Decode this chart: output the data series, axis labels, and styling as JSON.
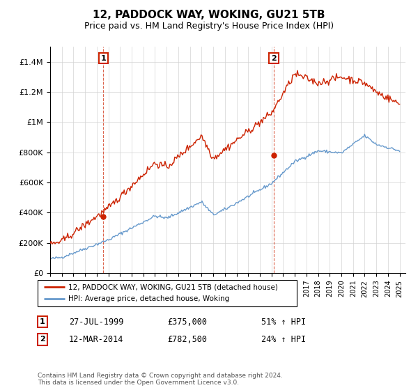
{
  "title": "12, PADDOCK WAY, WOKING, GU21 5TB",
  "subtitle": "Price paid vs. HM Land Registry's House Price Index (HPI)",
  "ylim": [
    0,
    1500000
  ],
  "yticks": [
    0,
    200000,
    400000,
    600000,
    800000,
    1000000,
    1200000,
    1400000
  ],
  "ytick_labels": [
    "£0",
    "£200K",
    "£400K",
    "£600K",
    "£800K",
    "£1M",
    "£1.2M",
    "£1.4M"
  ],
  "sale1": {
    "date": "27-JUL-1999",
    "price": 375000,
    "pct": "51%",
    "label": "1",
    "year": 1999.57
  },
  "sale2": {
    "date": "12-MAR-2014",
    "price": 782500,
    "pct": "24%",
    "label": "2",
    "year": 2014.19
  },
  "hpi_color": "#6699cc",
  "price_color": "#cc2200",
  "dashed_color": "#cc2200",
  "legend_label1": "12, PADDOCK WAY, WOKING, GU21 5TB (detached house)",
  "legend_label2": "HPI: Average price, detached house, Woking",
  "footer": "Contains HM Land Registry data © Crown copyright and database right 2024.\nThis data is licensed under the Open Government Licence v3.0.",
  "xmin": 1995.0,
  "xmax": 2025.5
}
